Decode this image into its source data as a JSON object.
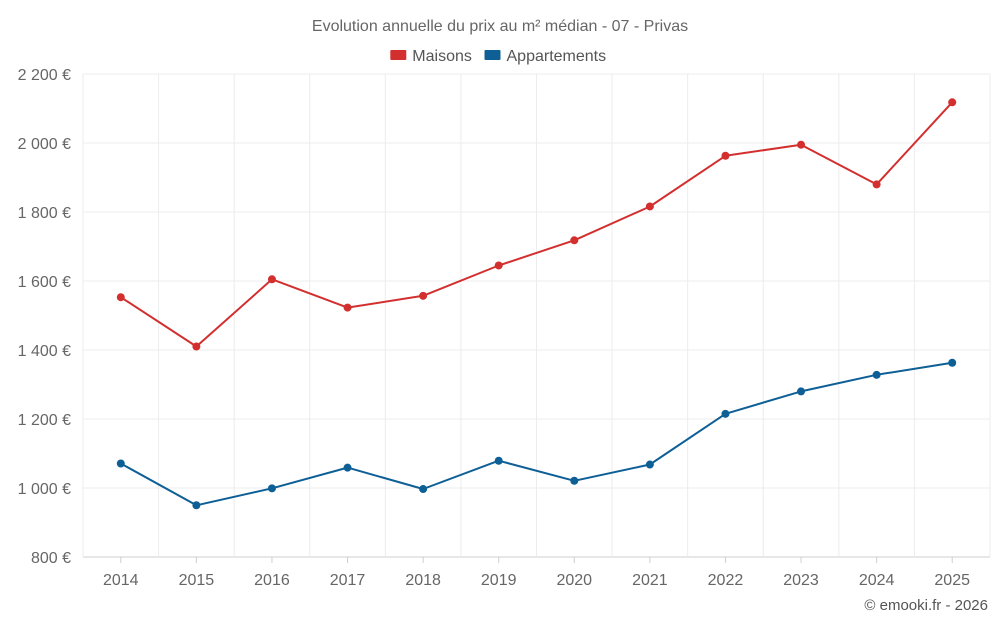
{
  "chart_data": {
    "type": "line",
    "title": "Evolution annuelle du prix au m² médian - 07 - Privas",
    "categories": [
      "2014",
      "2015",
      "2016",
      "2017",
      "2018",
      "2019",
      "2020",
      "2021",
      "2022",
      "2023",
      "2024",
      "2025"
    ],
    "series": [
      {
        "name": "Maisons",
        "color": "#d32f2f",
        "values": [
          1553,
          1410,
          1605,
          1523,
          1557,
          1645,
          1718,
          1816,
          1963,
          1995,
          1880,
          2118
        ]
      },
      {
        "name": "Appartements",
        "color": "#0d5f96",
        "values": [
          1071,
          950,
          999,
          1059,
          997,
          1079,
          1021,
          1068,
          1215,
          1280,
          1328,
          1363
        ]
      }
    ],
    "ylim": [
      800,
      2200
    ],
    "yticks": [
      800,
      1000,
      1200,
      1400,
      1600,
      1800,
      2000,
      2200
    ],
    "ytick_labels": [
      "800 €",
      "1 000 €",
      "1 200 €",
      "1 400 €",
      "1 600 €",
      "1 800 €",
      "2 000 €",
      "2 200 €"
    ],
    "grid": true,
    "legend_position": "top-center"
  },
  "credit": "© emooki.fr - 2026"
}
